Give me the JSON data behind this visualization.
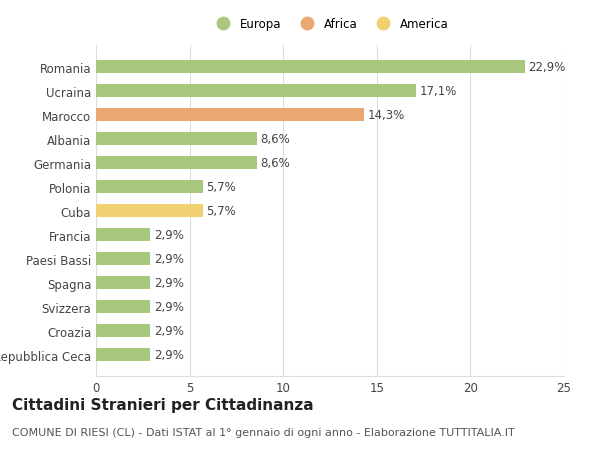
{
  "categories": [
    "Repubblica Ceca",
    "Croazia",
    "Svizzera",
    "Spagna",
    "Paesi Bassi",
    "Francia",
    "Cuba",
    "Polonia",
    "Germania",
    "Albania",
    "Marocco",
    "Ucraina",
    "Romania"
  ],
  "values": [
    2.9,
    2.9,
    2.9,
    2.9,
    2.9,
    2.9,
    5.7,
    5.7,
    8.6,
    8.6,
    14.3,
    17.1,
    22.9
  ],
  "labels": [
    "2,9%",
    "2,9%",
    "2,9%",
    "2,9%",
    "2,9%",
    "2,9%",
    "5,7%",
    "5,7%",
    "8,6%",
    "8,6%",
    "14,3%",
    "17,1%",
    "22,9%"
  ],
  "colors": [
    "#a8c880",
    "#a8c880",
    "#a8c880",
    "#a8c880",
    "#a8c880",
    "#a8c880",
    "#f0d070",
    "#a8c880",
    "#a8c880",
    "#a8c880",
    "#e8a870",
    "#a8c880",
    "#a8c880"
  ],
  "legend_labels": [
    "Europa",
    "Africa",
    "America"
  ],
  "legend_colors": [
    "#a8c880",
    "#e8a870",
    "#f0d070"
  ],
  "xlim": [
    0,
    25
  ],
  "xticks": [
    0,
    5,
    10,
    15,
    20,
    25
  ],
  "title": "Cittadini Stranieri per Cittadinanza",
  "subtitle": "COMUNE DI RIESI (CL) - Dati ISTAT al 1° gennaio di ogni anno - Elaborazione TUTTITALIA.IT",
  "background_color": "#ffffff",
  "grid_color": "#dddddd",
  "bar_height": 0.55,
  "label_fontsize": 8.5,
  "tick_fontsize": 8.5,
  "title_fontsize": 11,
  "subtitle_fontsize": 8
}
